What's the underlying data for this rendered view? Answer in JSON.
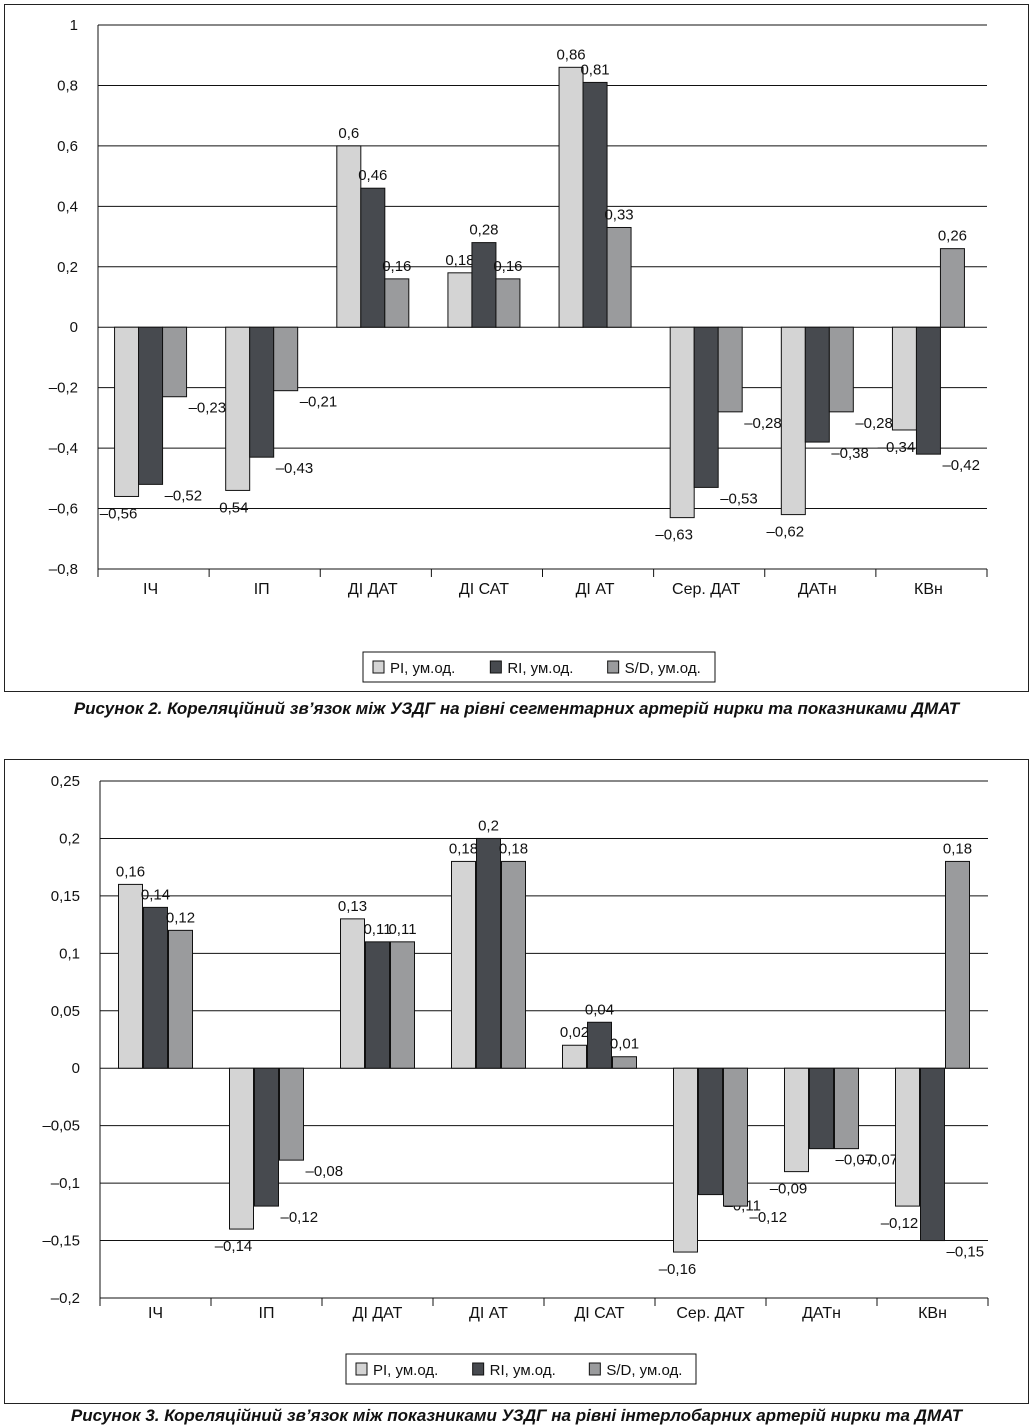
{
  "colors": {
    "pi": "#d4d4d4",
    "ri": "#474a4f",
    "sd": "#9a9b9d",
    "grid": "#111111"
  },
  "legend": [
    {
      "key": "pi",
      "label": "PI, ум.од."
    },
    {
      "key": "ri",
      "label": "RI, ум.од."
    },
    {
      "key": "sd",
      "label": "S/D, ум.од."
    }
  ],
  "captions": {
    "fig2": "Рисунок 2. Кореляційний зв’язок між УЗДГ на рівні сегментарних артерій нирки та показниками ДМАТ",
    "fig3": "Рисунок 3. Кореляційний зв’язок між показниками УЗДГ на рівні інтерлобарних артерій нирки та ДМАТ"
  },
  "chart_data": [
    {
      "type": "bar",
      "title": "Рисунок 2. Кореляційний зв’язок між УЗДГ на рівні сегментарних артерій нирки та показниками ДМАТ",
      "categories": [
        "ІЧ",
        "ІП",
        "ДІ ДАТ",
        "ДІ САТ",
        "ДІ АТ",
        "Сер. ДАТ",
        "ДАТн",
        "КВн"
      ],
      "ylim": [
        -0.8,
        1
      ],
      "yticks": [
        1,
        0.8,
        0.6,
        0.4,
        0.2,
        0,
        -0.2,
        -0.4,
        -0.6,
        -0.8
      ],
      "ytick_labels": [
        "1",
        "0,8",
        "0,6",
        "0,4",
        "0,2",
        "0",
        "–0,2",
        "–0,4",
        "–0,6",
        "–0,8"
      ],
      "grid": true,
      "legend_position": "bottom",
      "series": [
        {
          "name": "PI, ум.од.",
          "values": [
            -0.56,
            -0.54,
            0.6,
            0.18,
            0.86,
            -0.63,
            -0.62,
            -0.34
          ],
          "labels": [
            "–0,56",
            "–0,54",
            "0,6",
            "0,18",
            "0,86",
            "–0,63",
            "–0,62",
            "–0,34"
          ]
        },
        {
          "name": "RI, ум.од.",
          "values": [
            -0.52,
            -0.43,
            0.46,
            0.28,
            0.81,
            -0.53,
            -0.38,
            -0.42
          ],
          "labels": [
            "–0,52",
            "–0,43",
            "0,46",
            "0,28",
            "0,81",
            "–0,53",
            "–0,38",
            "–0,42"
          ]
        },
        {
          "name": "S/D, ум.од.",
          "values": [
            -0.23,
            -0.21,
            0.16,
            0.16,
            0.33,
            -0.28,
            -0.28,
            0.26
          ],
          "labels": [
            "–0,23",
            "–0,21",
            "0,16",
            "0,16",
            "0,33",
            "–0,28",
            "–0,28",
            "0,26"
          ]
        }
      ]
    },
    {
      "type": "bar",
      "title": "Рисунок 3. Кореляційний зв’язок між показниками УЗДГ на рівні інтерлобарних артерій нирки та ДМАТ",
      "categories": [
        "ІЧ",
        "ІП",
        "ДІ ДАТ",
        "ДІ АТ",
        "ДІ САТ",
        "Сер. ДАТ",
        "ДАТн",
        "КВн"
      ],
      "ylim": [
        -0.2,
        0.25
      ],
      "yticks": [
        0.25,
        0.2,
        0.15,
        0.1,
        0.05,
        0,
        -0.05,
        -0.1,
        -0.15,
        -0.2
      ],
      "ytick_labels": [
        "0,25",
        "0,2",
        "0,15",
        "0,1",
        "0,05",
        "0",
        "–0,05",
        "–0,1",
        "–0,15",
        "–0,2"
      ],
      "grid": true,
      "legend_position": "bottom",
      "series": [
        {
          "name": "PI, ум.од.",
          "values": [
            0.16,
            -0.14,
            0.13,
            0.18,
            0.02,
            -0.16,
            -0.09,
            -0.12
          ],
          "labels": [
            "0,16",
            "–0,14",
            "0,13",
            "0,18",
            "0,02",
            "–0,16",
            "–0,09",
            "–0,12"
          ]
        },
        {
          "name": "RI, ум.од.",
          "values": [
            0.14,
            -0.12,
            0.11,
            0.2,
            0.04,
            -0.11,
            -0.07,
            -0.15
          ],
          "labels": [
            "0,14",
            "–0,12",
            "0,11",
            "0,2",
            "0,04",
            "–0,11",
            "–0,07",
            "–0,15"
          ]
        },
        {
          "name": "S/D, ум.од.",
          "values": [
            0.12,
            -0.08,
            0.11,
            0.18,
            0.01,
            -0.12,
            -0.07,
            0.18
          ],
          "labels": [
            "0,12",
            "–0,08",
            "0,11",
            "0,18",
            "0,01",
            "–0,12",
            "–0,07",
            "0,18"
          ]
        }
      ]
    }
  ]
}
